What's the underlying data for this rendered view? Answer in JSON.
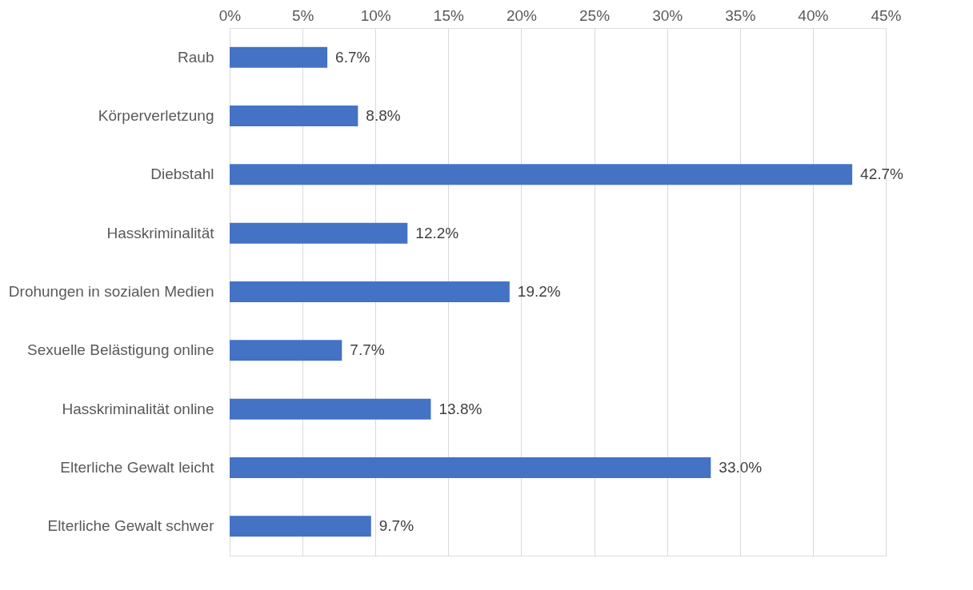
{
  "chart_data": {
    "type": "bar",
    "orientation": "horizontal",
    "categories": [
      "Raub",
      "Körperverletzung",
      "Diebstahl",
      "Hasskriminalität",
      "Drohungen in sozialen Medien",
      "Sexuelle Belästigung online",
      "Hasskriminalität online",
      "Elterliche Gewalt leicht",
      "Elterliche Gewalt schwer"
    ],
    "values": [
      6.7,
      8.8,
      42.7,
      12.2,
      19.2,
      7.7,
      13.8,
      33.0,
      9.7
    ],
    "value_labels": [
      "6.7%",
      "8.8%",
      "42.7%",
      "12.2%",
      "19.2%",
      "7.7%",
      "13.8%",
      "33.0%",
      "9.7%"
    ],
    "color": "#4472c4",
    "xlim": [
      0,
      45
    ],
    "xticks": [
      {
        "value": 0,
        "label": "0%"
      },
      {
        "value": 5,
        "label": "5%"
      },
      {
        "value": 10,
        "label": "10%"
      },
      {
        "value": 15,
        "label": "15%"
      },
      {
        "value": 20,
        "label": "20%"
      },
      {
        "value": 25,
        "label": "25%"
      },
      {
        "value": 30,
        "label": "30%"
      },
      {
        "value": 35,
        "label": "35%"
      },
      {
        "value": 40,
        "label": "40%"
      },
      {
        "value": 45,
        "label": "45%"
      }
    ],
    "grid": "x"
  }
}
